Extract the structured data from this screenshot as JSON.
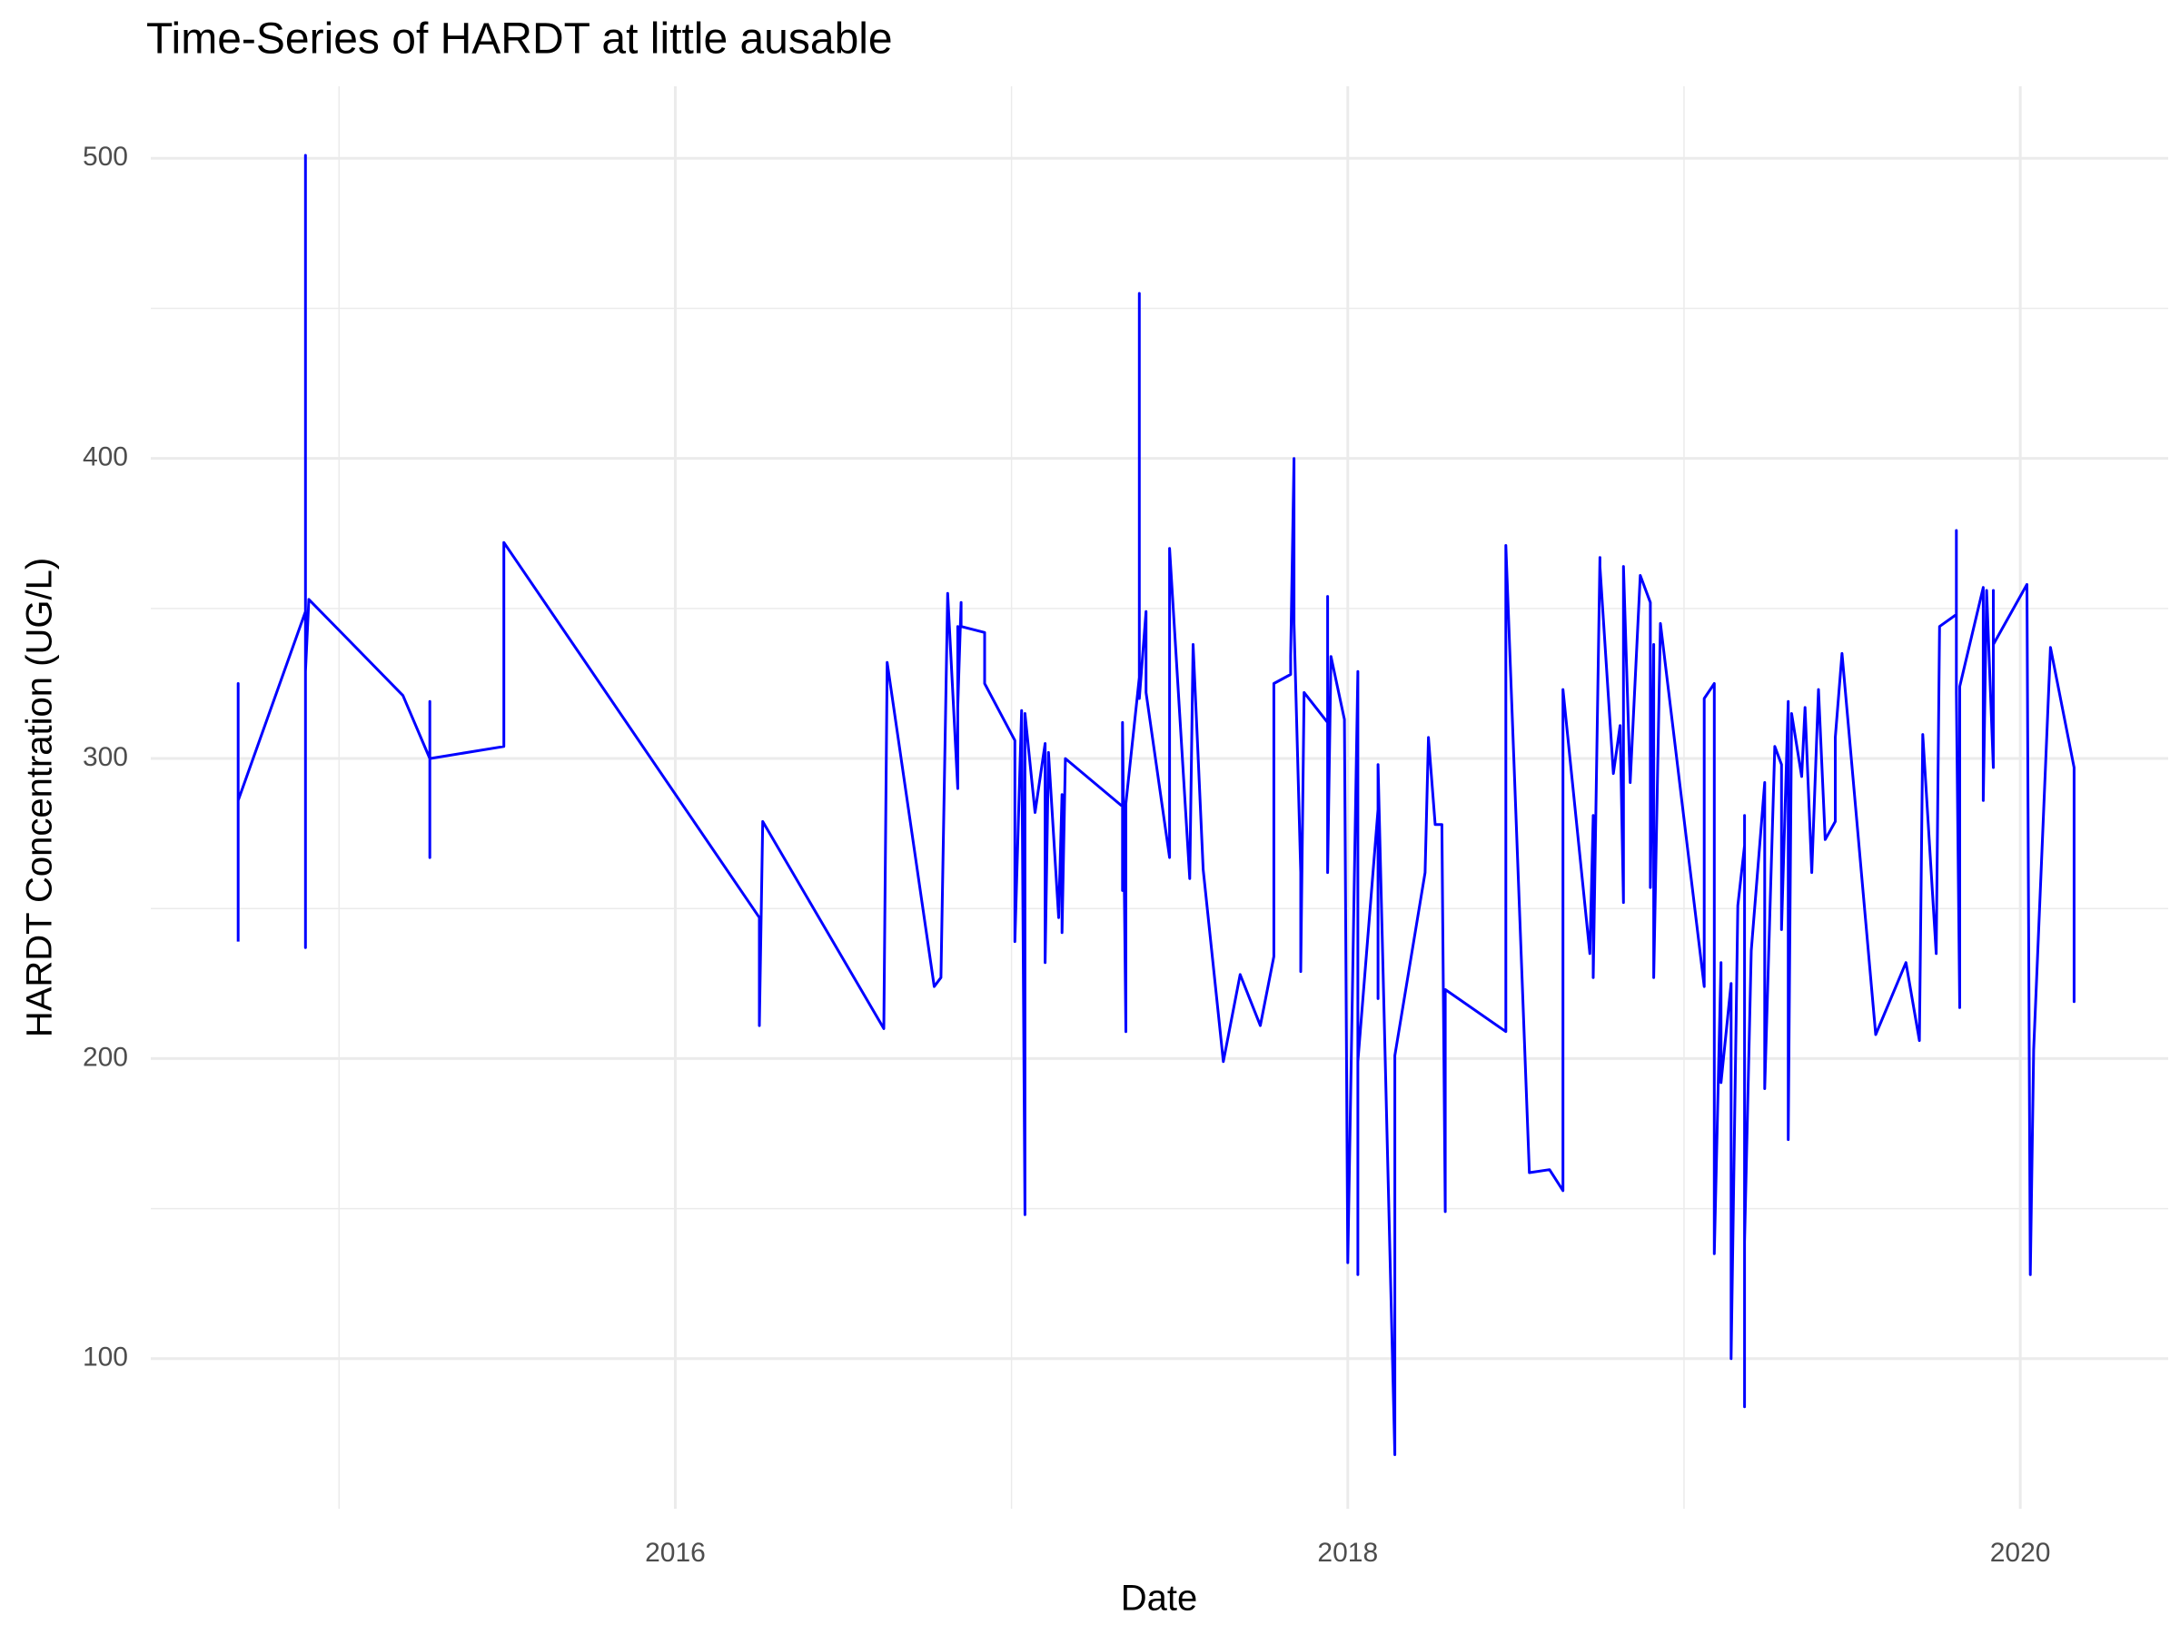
{
  "chart_data": {
    "type": "line",
    "title": "Time-Series of HARDT at little ausable",
    "xlabel": "Date",
    "ylabel": "HARDT Concentration (UG/L)",
    "color": "#0000ff",
    "grid": true,
    "xlim": [
      2014.44,
      2020.44
    ],
    "ylim": [
      50,
      524
    ],
    "xticks": [
      2016,
      2018,
      2020
    ],
    "yticks": [
      100,
      200,
      300,
      400,
      500
    ],
    "xminorticks": [
      2015,
      2017,
      2019
    ],
    "yminorticks": [
      150,
      250,
      350,
      450
    ],
    "x": [
      2014.7,
      2014.7,
      2014.7,
      2014.9,
      2014.9,
      2014.9,
      2014.9,
      2014.9,
      2014.91,
      2015.19,
      2015.27,
      2015.27,
      2015.27,
      2015.27,
      2015.49,
      2015.49,
      2016.25,
      2016.25,
      2016.26,
      2016.62,
      2016.63,
      2016.77,
      2016.79,
      2016.81,
      2016.84,
      2016.84,
      2016.84,
      2016.85,
      2016.85,
      2016.92,
      2016.92,
      2017.01,
      2017.01,
      2017.03,
      2017.04,
      2017.04,
      2017.07,
      2017.1,
      2017.1,
      2017.11,
      2017.14,
      2017.15,
      2017.15,
      2017.16,
      2017.33,
      2017.33,
      2017.33,
      2017.34,
      2017.34,
      2017.38,
      2017.38,
      2017.38,
      2017.4,
      2017.4,
      2017.47,
      2017.47,
      2017.53,
      2017.54,
      2017.57,
      2017.63,
      2017.68,
      2017.74,
      2017.78,
      2017.78,
      2017.83,
      2017.83,
      2017.84,
      2017.84,
      2017.86,
      2017.86,
      2017.87,
      2017.94,
      2017.94,
      2017.94,
      2017.95,
      2017.99,
      2018.0,
      2018.03,
      2018.03,
      2018.03,
      2018.09,
      2018.09,
      2018.09,
      2018.14,
      2018.14,
      2018.23,
      2018.24,
      2018.26,
      2018.28,
      2018.29,
      2018.29,
      2018.47,
      2018.47,
      2018.54,
      2018.6,
      2018.64,
      2018.64,
      2018.72,
      2018.73,
      2018.73,
      2018.75,
      2018.75,
      2018.79,
      2018.81,
      2018.82,
      2018.82,
      2018.84,
      2018.87,
      2018.9,
      2018.9,
      2018.91,
      2018.91,
      2018.93,
      2019.06,
      2019.06,
      2019.09,
      2019.09,
      2019.11,
      2019.11,
      2019.14,
      2019.14,
      2019.16,
      2019.18,
      2019.18,
      2019.18,
      2019.18,
      2019.2,
      2019.24,
      2019.24,
      2019.27,
      2019.29,
      2019.29,
      2019.31,
      2019.31,
      2019.32,
      2019.35,
      2019.36,
      2019.38,
      2019.4,
      2019.42,
      2019.45,
      2019.45,
      2019.47,
      2019.57,
      2019.66,
      2019.7,
      2019.71,
      2019.75,
      2019.76,
      2019.81,
      2019.81,
      2019.81,
      2019.82,
      2019.82,
      2019.89,
      2019.89,
      2019.9,
      2019.92,
      2019.92,
      2019.92,
      2020.02,
      2020.03,
      2020.04,
      2020.09,
      2020.16,
      2020.16,
      2020.16
    ],
    "values": [
      239,
      325,
      286,
      349,
      501,
      237,
      375,
      329,
      353,
      321,
      300,
      319,
      267,
      300,
      304,
      372,
      247,
      211,
      279,
      210,
      332,
      224,
      227,
      355,
      290,
      344,
      317,
      352,
      344,
      342,
      325,
      306,
      239,
      316,
      148,
      315,
      282,
      305,
      232,
      302,
      247,
      288,
      242,
      300,
      284,
      256,
      312,
      209,
      285,
      327,
      455,
      320,
      349,
      322,
      267,
      370,
      260,
      338,
      263,
      199,
      228,
      211,
      234,
      325,
      328,
      334,
      400,
      345,
      262,
      229,
      322,
      312,
      354,
      262,
      334,
      313,
      132,
      329,
      128,
      199,
      283,
      220,
      298,
      68,
      201,
      262,
      307,
      278,
      278,
      149,
      223,
      209,
      371,
      162,
      163,
      156,
      323,
      235,
      281,
      227,
      367,
      364,
      295,
      311,
      252,
      364,
      292,
      361,
      352,
      257,
      338,
      227,
      345,
      224,
      320,
      325,
      135,
      232,
      192,
      225,
      100,
      251,
      271,
      84,
      281,
      139,
      236,
      292,
      190,
      304,
      298,
      243,
      319,
      173,
      315,
      294,
      317,
      262,
      323,
      273,
      279,
      307,
      335,
      208,
      232,
      206,
      308,
      235,
      344,
      348,
      376,
      322,
      217,
      324,
      357,
      286,
      356,
      297,
      356,
      338,
      358,
      128,
      203,
      337,
      297,
      219,
      247
    ]
  }
}
